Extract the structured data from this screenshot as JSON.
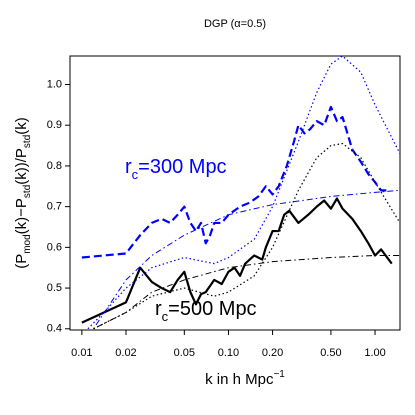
{
  "chart_data": {
    "type": "line",
    "title": "DGP (α=0.5)",
    "xlabel": [
      "k in h Mpc",
      "−1"
    ],
    "ylabel": [
      "(P",
      "mod",
      "(k)−P",
      "std",
      "(k))/P",
      "std",
      "(k)"
    ],
    "xscale": "log",
    "xlim": [
      0.0083,
      1.48
    ],
    "ylim": [
      0.397,
      1.07
    ],
    "xticks": [
      0.01,
      0.02,
      0.05,
      {
        "value": 0.1,
        "label": "0.10"
      },
      {
        "value": 0.2,
        "label": "0.20"
      },
      {
        "value": 0.5,
        "label": "0.50"
      },
      {
        "value": 1,
        "label": "1.00"
      }
    ],
    "yticks": [
      0.4,
      0.5,
      0.6,
      0.7,
      0.8,
      0.9,
      {
        "value": 1,
        "label": "1.0"
      }
    ],
    "annotations": [
      {
        "text": [
          "r",
          "c",
          "=300 Mpc"
        ],
        "color": "#0000ff"
      },
      {
        "text": [
          "r",
          "c",
          "=500 Mpc"
        ],
        "color": "#000000"
      }
    ],
    "series": [
      {
        "color": "#000000",
        "dash": "solid",
        "width": 2.2,
        "x": [
          0.01,
          0.02,
          0.025,
          0.03,
          0.035,
          0.04,
          0.045,
          0.05,
          0.055,
          0.06,
          0.065,
          0.07,
          0.08,
          0.09,
          0.1,
          0.11,
          0.12,
          0.13,
          0.15,
          0.17,
          0.18,
          0.2,
          0.22,
          0.24,
          0.26,
          0.3,
          0.35,
          0.4,
          0.45,
          0.5,
          0.55,
          0.6,
          0.7,
          0.8,
          0.9,
          1.0,
          1.1,
          1.3
        ],
        "values": [
          0.415,
          0.465,
          0.55,
          0.515,
          0.5,
          0.49,
          0.52,
          0.54,
          0.49,
          0.46,
          0.485,
          0.49,
          0.52,
          0.51,
          0.54,
          0.55,
          0.53,
          0.56,
          0.58,
          0.57,
          0.6,
          0.64,
          0.64,
          0.68,
          0.69,
          0.66,
          0.68,
          0.7,
          0.715,
          0.695,
          0.72,
          0.695,
          0.67,
          0.64,
          0.61,
          0.58,
          0.595,
          0.56
        ]
      },
      {
        "color": "#0000ff",
        "dash": "dashed",
        "width": 2.2,
        "x": [
          0.01,
          0.02,
          0.025,
          0.03,
          0.035,
          0.04,
          0.045,
          0.05,
          0.055,
          0.06,
          0.065,
          0.07,
          0.075,
          0.08,
          0.09,
          0.1,
          0.12,
          0.14,
          0.16,
          0.18,
          0.2,
          0.22,
          0.25,
          0.28,
          0.3,
          0.33,
          0.36,
          0.4,
          0.45,
          0.5,
          0.55,
          0.6,
          0.7,
          0.8,
          0.9,
          1.0,
          1.1,
          1.2
        ],
        "values": [
          0.575,
          0.585,
          0.63,
          0.66,
          0.67,
          0.66,
          0.68,
          0.7,
          0.66,
          0.64,
          0.66,
          0.61,
          0.63,
          0.66,
          0.66,
          0.68,
          0.7,
          0.71,
          0.725,
          0.75,
          0.73,
          0.75,
          0.8,
          0.86,
          0.9,
          0.88,
          0.89,
          0.91,
          0.9,
          0.945,
          0.91,
          0.92,
          0.84,
          0.81,
          0.78,
          0.76,
          0.74,
          0.74
        ]
      },
      {
        "color": "#0000ff",
        "dash": "dotted",
        "width": 1.2,
        "x": [
          0.011,
          0.015,
          0.02,
          0.03,
          0.05,
          0.08,
          0.1,
          0.15,
          0.2,
          0.3,
          0.4,
          0.5,
          0.6,
          0.8,
          1.0,
          1.48
        ],
        "values": [
          0.4,
          0.45,
          0.5,
          0.55,
          0.575,
          0.56,
          0.575,
          0.62,
          0.7,
          0.86,
          0.98,
          1.05,
          1.07,
          1.03,
          0.95,
          0.83
        ]
      },
      {
        "color": "#000000",
        "dash": "dotted",
        "width": 1.2,
        "x": [
          0.012,
          0.02,
          0.03,
          0.05,
          0.08,
          0.1,
          0.15,
          0.2,
          0.3,
          0.4,
          0.5,
          0.6,
          0.8,
          1.0,
          1.48
        ],
        "values": [
          0.4,
          0.44,
          0.48,
          0.5,
          0.48,
          0.49,
          0.53,
          0.6,
          0.74,
          0.82,
          0.85,
          0.855,
          0.82,
          0.76,
          0.66
        ]
      },
      {
        "color": "#0000ff",
        "dash": "dotdash",
        "width": 1,
        "x": [
          0.012,
          0.02,
          0.03,
          0.05,
          0.1,
          0.2,
          0.5,
          1.0,
          1.48
        ],
        "values": [
          0.4,
          0.52,
          0.58,
          0.63,
          0.68,
          0.705,
          0.725,
          0.735,
          0.74
        ]
      },
      {
        "color": "#000000",
        "dash": "dotdash",
        "width": 1,
        "x": [
          0.012,
          0.02,
          0.03,
          0.05,
          0.1,
          0.2,
          0.5,
          1.0,
          1.48
        ],
        "values": [
          0.4,
          0.44,
          0.49,
          0.52,
          0.55,
          0.565,
          0.575,
          0.58,
          0.58
        ]
      }
    ]
  }
}
